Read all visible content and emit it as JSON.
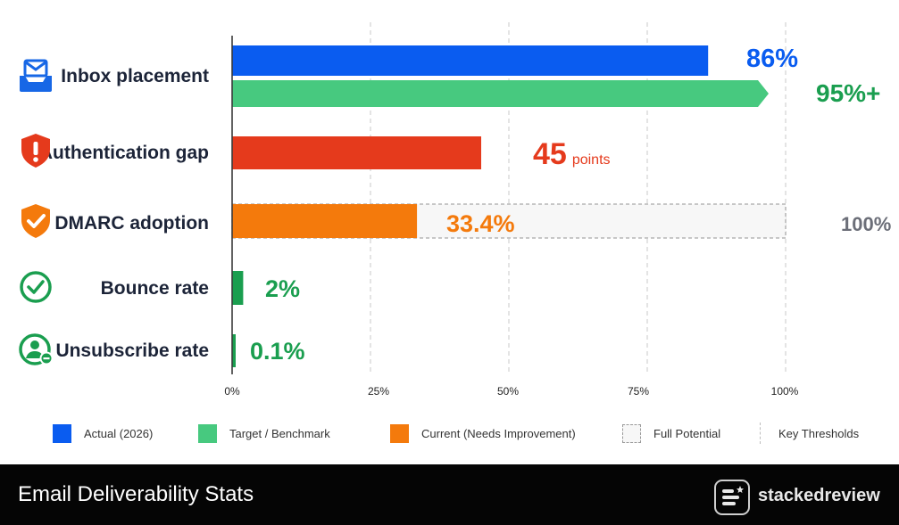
{
  "chart_data": {
    "type": "bar",
    "orientation": "horizontal",
    "categories": [
      "Inbox placement",
      "Authentication gap",
      "DMARC adoption",
      "Bounce rate",
      "Unsubscribe rate"
    ],
    "series": [
      {
        "name": "Actual (2026)",
        "color": "#0a5cf0",
        "values": [
          86,
          null,
          null,
          null,
          null
        ]
      },
      {
        "name": "Target / Benchmark",
        "color": "#47c97f",
        "values": [
          95,
          null,
          null,
          null,
          null
        ]
      },
      {
        "name": "Current (Needs Improvement)",
        "color": "#f47a0c",
        "values": [
          null,
          45,
          33.4,
          2,
          0.1
        ]
      }
    ],
    "full_potential": {
      "category": "DMARC adoption",
      "value": 100,
      "label": "100%"
    },
    "value_labels": [
      {
        "category": "Inbox placement",
        "series": "Actual (2026)",
        "text": "86%",
        "color": "#0a5cf0"
      },
      {
        "category": "Inbox placement",
        "series": "Target / Benchmark",
        "text": "95%+",
        "color": "#1a9e4f"
      },
      {
        "category": "Authentication gap",
        "text": "45",
        "unit": "points",
        "color": "#e53a1c"
      },
      {
        "category": "DMARC adoption",
        "text": "33.4%",
        "color": "#f47a0c"
      },
      {
        "category": "Bounce rate",
        "text": "2%",
        "color": "#1a9e4f"
      },
      {
        "category": "Unsubscribe rate",
        "text": "0.1%",
        "color": "#1a9e4f"
      }
    ],
    "bar_colors": {
      "Inbox placement": [
        "#0a5cf0",
        "#47c97f"
      ],
      "Authentication gap": [
        "#e53a1c"
      ],
      "DMARC adoption": [
        "#f47a0c"
      ],
      "Bounce rate": [
        "#1a9e4f"
      ],
      "Unsubscribe rate": [
        "#1a9e4f"
      ]
    },
    "xlim": [
      0,
      100
    ],
    "xticks": [
      0,
      25,
      50,
      75,
      100
    ],
    "xtick_labels": [
      "0%",
      "25%",
      "50%",
      "75%",
      "100%"
    ],
    "grid": "vertical dashed",
    "legend_position": "bottom",
    "title": "",
    "xlabel": "",
    "ylabel": ""
  },
  "rows": [
    {
      "label": "Inbox placement",
      "icon": "inbox-mail-icon",
      "icon_color": "#1767e6"
    },
    {
      "label": "Authentication gap",
      "icon": "warning-shield-icon",
      "icon_color": "#e53a1c"
    },
    {
      "label": "DMARC adoption",
      "icon": "check-shield-icon",
      "icon_color": "#f47a0c"
    },
    {
      "label": "Bounce rate",
      "icon": "check-circle-icon",
      "icon_color": "#1a9e4f"
    },
    {
      "label": "Unsubscribe rate",
      "icon": "user-minus-icon",
      "icon_color": "#1a9e4f"
    }
  ],
  "legend": [
    {
      "label": "Actual (2026)",
      "color": "#0a5cf0",
      "style": "solid"
    },
    {
      "label": "Target / Benchmark",
      "color": "#47c97f",
      "style": "solid"
    },
    {
      "label": "Current (Needs Improvement)",
      "color": "#f47a0c",
      "style": "solid"
    },
    {
      "label": "Full Potential",
      "color": "#f7f7f7",
      "style": "dashed-box"
    },
    {
      "label": "Key Thresholds",
      "color": "#bdbdbd",
      "style": "dashed-line"
    }
  ],
  "footer": {
    "title": "Email Deliverability Stats",
    "brand": "stackedreview"
  }
}
